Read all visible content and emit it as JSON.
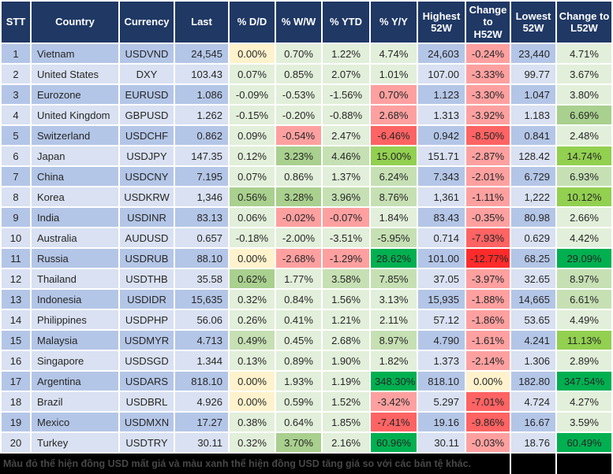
{
  "palette": {
    "header_bg": "#1F3864",
    "grid": "#FFFFFF",
    "row_odd": "#B4C6E7",
    "row_even": "#D9E1F2",
    "y": "#FFF2CC",
    "g1": "#E2EFDA",
    "g2": "#C6E0B4",
    "g3": "#A9D08E",
    "g4": "#92D050",
    "g5": "#00B050",
    "r1": "#FFA0A0",
    "r2": "#FF6363",
    "r3": "#FF2B2B",
    "footer_bg": "#000000",
    "footer_text": "#474747"
  },
  "chart_data": {
    "type": "table",
    "columns": [
      {
        "key": "stt",
        "label": "STT",
        "align": "center",
        "fill": "stripe"
      },
      {
        "key": "country",
        "label": "Country",
        "align": "left",
        "fill": "stripe"
      },
      {
        "key": "currency",
        "label": "Currency",
        "align": "center",
        "fill": "stripe"
      },
      {
        "key": "last",
        "label": "Last",
        "align": "right",
        "fill": "stripe"
      },
      {
        "key": "dd",
        "label": "% D/D",
        "align": "center",
        "fill": "scale"
      },
      {
        "key": "ww",
        "label": "% W/W",
        "align": "center",
        "fill": "scale"
      },
      {
        "key": "ytd",
        "label": "% YTD",
        "align": "center",
        "fill": "scale"
      },
      {
        "key": "yy",
        "label": "% Y/Y",
        "align": "center",
        "fill": "scale"
      },
      {
        "key": "high",
        "label": "Highest 52W",
        "align": "right",
        "fill": "stripe"
      },
      {
        "key": "chg_h",
        "label": "Change to H52W",
        "align": "center",
        "fill": "scale"
      },
      {
        "key": "low",
        "label": "Lowest 52W",
        "align": "right",
        "fill": "stripe"
      },
      {
        "key": "chg_l",
        "label": "Change to L52W",
        "align": "center",
        "fill": "scale"
      }
    ],
    "rows": [
      {
        "stt": "1",
        "country": "Vietnam",
        "currency": "USDVND",
        "last": "24,545",
        "dd": "0.00%",
        "dd_c": "y",
        "ww": "0.70%",
        "ww_c": "g1",
        "ytd": "1.22%",
        "ytd_c": "g1",
        "yy": "4.74%",
        "yy_c": "g1",
        "high": "24,603",
        "chg_h": "-0.24%",
        "chg_h_c": "r1",
        "low": "23,440",
        "chg_l": "4.71%",
        "chg_l_c": "g1"
      },
      {
        "stt": "2",
        "country": "United States",
        "currency": "DXY",
        "last": "103.43",
        "dd": "0.07%",
        "dd_c": "g1",
        "ww": "0.85%",
        "ww_c": "g1",
        "ytd": "2.07%",
        "ytd_c": "g1",
        "yy": "1.01%",
        "yy_c": "g1",
        "high": "107.00",
        "chg_h": "-3.33%",
        "chg_h_c": "r1",
        "low": "99.77",
        "chg_l": "3.67%",
        "chg_l_c": "g1"
      },
      {
        "stt": "3",
        "country": "Eurozone",
        "currency": "EURUSD",
        "last": "1.086",
        "dd": "-0.09%",
        "dd_c": "g1",
        "ww": "-0.53%",
        "ww_c": "g1",
        "ytd": "-1.56%",
        "ytd_c": "g1",
        "yy": "0.70%",
        "yy_c": "r1",
        "high": "1.123",
        "chg_h": "-3.30%",
        "chg_h_c": "r1",
        "low": "1.047",
        "chg_l": "3.80%",
        "chg_l_c": "g1"
      },
      {
        "stt": "4",
        "country": "United Kingdom",
        "currency": "GBPUSD",
        "last": "1.262",
        "dd": "-0.15%",
        "dd_c": "g1",
        "ww": "-0.20%",
        "ww_c": "g1",
        "ytd": "-0.88%",
        "ytd_c": "g1",
        "yy": "2.68%",
        "yy_c": "r1",
        "high": "1.313",
        "chg_h": "-3.92%",
        "chg_h_c": "r1",
        "low": "1.183",
        "chg_l": "6.69%",
        "chg_l_c": "g3"
      },
      {
        "stt": "5",
        "country": "Switzerland",
        "currency": "USDCHF",
        "last": "0.862",
        "dd": "0.09%",
        "dd_c": "g1",
        "ww": "-0.54%",
        "ww_c": "r1",
        "ytd": "2.47%",
        "ytd_c": "g1",
        "yy": "-6.46%",
        "yy_c": "r2",
        "high": "0.942",
        "chg_h": "-8.50%",
        "chg_h_c": "r2",
        "low": "0.841",
        "chg_l": "2.48%",
        "chg_l_c": "g1"
      },
      {
        "stt": "6",
        "country": "Japan",
        "currency": "USDJPY",
        "last": "147.35",
        "dd": "0.12%",
        "dd_c": "g1",
        "ww": "3.23%",
        "ww_c": "g3",
        "ytd": "4.46%",
        "ytd_c": "g2",
        "yy": "15.00%",
        "yy_c": "g4",
        "high": "151.71",
        "chg_h": "-2.87%",
        "chg_h_c": "r1",
        "low": "128.42",
        "chg_l": "14.74%",
        "chg_l_c": "g4"
      },
      {
        "stt": "7",
        "country": "China",
        "currency": "USDCNY",
        "last": "7.195",
        "dd": "0.07%",
        "dd_c": "g1",
        "ww": "0.86%",
        "ww_c": "g1",
        "ytd": "1.37%",
        "ytd_c": "g1",
        "yy": "6.24%",
        "yy_c": "g2",
        "high": "7.343",
        "chg_h": "-2.01%",
        "chg_h_c": "r1",
        "low": "6.729",
        "chg_l": "6.93%",
        "chg_l_c": "g2"
      },
      {
        "stt": "8",
        "country": "Korea",
        "currency": "USDKRW",
        "last": "1,346",
        "dd": "0.56%",
        "dd_c": "g3",
        "ww": "3.28%",
        "ww_c": "g3",
        "ytd": "3.96%",
        "ytd_c": "g2",
        "yy": "8.76%",
        "yy_c": "g2",
        "high": "1,361",
        "chg_h": "-1.11%",
        "chg_h_c": "r1",
        "low": "1,222",
        "chg_l": "10.12%",
        "chg_l_c": "g4"
      },
      {
        "stt": "9",
        "country": "India",
        "currency": "USDINR",
        "last": "83.13",
        "dd": "0.06%",
        "dd_c": "g1",
        "ww": "-0.02%",
        "ww_c": "r1",
        "ytd": "-0.07%",
        "ytd_c": "r1",
        "yy": "1.84%",
        "yy_c": "g1",
        "high": "83.43",
        "chg_h": "-0.35%",
        "chg_h_c": "r1",
        "low": "80.98",
        "chg_l": "2.66%",
        "chg_l_c": "g1"
      },
      {
        "stt": "10",
        "country": "Australia",
        "currency": "AUDUSD",
        "last": "0.657",
        "dd": "-0.18%",
        "dd_c": "g1",
        "ww": "-2.00%",
        "ww_c": "g1",
        "ytd": "-3.51%",
        "ytd_c": "g1",
        "yy": "-5.95%",
        "yy_c": "g2",
        "high": "0.714",
        "chg_h": "-7.93%",
        "chg_h_c": "r2",
        "low": "0.629",
        "chg_l": "4.42%",
        "chg_l_c": "g1"
      },
      {
        "stt": "11",
        "country": "Russia",
        "currency": "USDRUB",
        "last": "88.10",
        "dd": "0.00%",
        "dd_c": "y",
        "ww": "-2.68%",
        "ww_c": "r1",
        "ytd": "-1.29%",
        "ytd_c": "r1",
        "yy": "28.62%",
        "yy_c": "g5",
        "high": "101.00",
        "chg_h": "-12.77%",
        "chg_h_c": "r3",
        "low": "68.25",
        "chg_l": "29.09%",
        "chg_l_c": "g5"
      },
      {
        "stt": "12",
        "country": "Thailand",
        "currency": "USDTHB",
        "last": "35.58",
        "dd": "0.62%",
        "dd_c": "g3",
        "ww": "1.77%",
        "ww_c": "g1",
        "ytd": "3.58%",
        "ytd_c": "g2",
        "yy": "7.85%",
        "yy_c": "g2",
        "high": "37.05",
        "chg_h": "-3.97%",
        "chg_h_c": "r1",
        "low": "32.65",
        "chg_l": "8.97%",
        "chg_l_c": "g2"
      },
      {
        "stt": "13",
        "country": "Indonesia",
        "currency": "USDIDR",
        "last": "15,635",
        "dd": "0.32%",
        "dd_c": "g1",
        "ww": "0.84%",
        "ww_c": "g1",
        "ytd": "1.56%",
        "ytd_c": "g1",
        "yy": "3.13%",
        "yy_c": "g1",
        "high": "15,935",
        "chg_h": "-1.88%",
        "chg_h_c": "r1",
        "low": "14,665",
        "chg_l": "6.61%",
        "chg_l_c": "g2"
      },
      {
        "stt": "14",
        "country": "Philippines",
        "currency": "USDPHP",
        "last": "56.06",
        "dd": "0.26%",
        "dd_c": "g1",
        "ww": "0.41%",
        "ww_c": "g1",
        "ytd": "1.21%",
        "ytd_c": "g1",
        "yy": "2.11%",
        "yy_c": "g1",
        "high": "57.12",
        "chg_h": "-1.86%",
        "chg_h_c": "r1",
        "low": "53.65",
        "chg_l": "4.49%",
        "chg_l_c": "g1"
      },
      {
        "stt": "15",
        "country": "Malaysia",
        "currency": "USDMYR",
        "last": "4.713",
        "dd": "0.49%",
        "dd_c": "g2",
        "ww": "0.45%",
        "ww_c": "g1",
        "ytd": "2.68%",
        "ytd_c": "g1",
        "yy": "8.97%",
        "yy_c": "g2",
        "high": "4.790",
        "chg_h": "-1.61%",
        "chg_h_c": "r1",
        "low": "4.241",
        "chg_l": "11.13%",
        "chg_l_c": "g4"
      },
      {
        "stt": "16",
        "country": "Singapore",
        "currency": "USDSGD",
        "last": "1.344",
        "dd": "0.13%",
        "dd_c": "g1",
        "ww": "0.89%",
        "ww_c": "g1",
        "ytd": "1.90%",
        "ytd_c": "g1",
        "yy": "1.82%",
        "yy_c": "g1",
        "high": "1.373",
        "chg_h": "-2.14%",
        "chg_h_c": "r1",
        "low": "1.306",
        "chg_l": "2.89%",
        "chg_l_c": "g1"
      },
      {
        "stt": "17",
        "country": "Argentina",
        "currency": "USDARS",
        "last": "818.10",
        "dd": "0.00%",
        "dd_c": "y",
        "ww": "1.93%",
        "ww_c": "g1",
        "ytd": "1.19%",
        "ytd_c": "g1",
        "yy": "348.30%",
        "yy_c": "g5",
        "high": "818.10",
        "chg_h": "0.00%",
        "chg_h_c": "y",
        "low": "182.80",
        "chg_l": "347.54%",
        "chg_l_c": "g5"
      },
      {
        "stt": "18",
        "country": "Brazil",
        "currency": "USDBRL",
        "last": "4.926",
        "dd": "0.00%",
        "dd_c": "y",
        "ww": "0.59%",
        "ww_c": "g1",
        "ytd": "1.52%",
        "ytd_c": "g1",
        "yy": "-3.42%",
        "yy_c": "r1",
        "high": "5.297",
        "chg_h": "-7.01%",
        "chg_h_c": "r2",
        "low": "4.724",
        "chg_l": "4.27%",
        "chg_l_c": "g1"
      },
      {
        "stt": "19",
        "country": "Mexico",
        "currency": "USDMXN",
        "last": "17.27",
        "dd": "0.38%",
        "dd_c": "g1",
        "ww": "0.64%",
        "ww_c": "g1",
        "ytd": "1.85%",
        "ytd_c": "g1",
        "yy": "-7.41%",
        "yy_c": "r2",
        "high": "19.16",
        "chg_h": "-9.86%",
        "chg_h_c": "r2",
        "low": "16.67",
        "chg_l": "3.59%",
        "chg_l_c": "g1"
      },
      {
        "stt": "20",
        "country": "Turkey",
        "currency": "USDTRY",
        "last": "30.11",
        "dd": "0.32%",
        "dd_c": "g1",
        "ww": "3.70%",
        "ww_c": "g3",
        "ytd": "2.16%",
        "ytd_c": "g1",
        "yy": "60.96%",
        "yy_c": "g5",
        "high": "30.11",
        "chg_h": "-0.03%",
        "chg_h_c": "r1",
        "low": "18.76",
        "chg_l": "60.49%",
        "chg_l_c": "g5"
      }
    ]
  },
  "footer": {
    "note": "Màu đỏ thể hiện đồng USD mất giá và màu xanh thể hiện đồng USD tăng giá so với các bản tệ khác."
  }
}
